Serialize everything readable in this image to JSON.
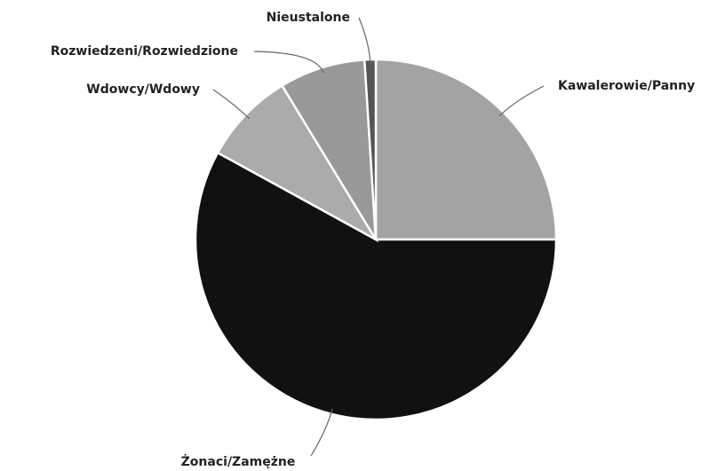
{
  "chart_data": {
    "type": "pie",
    "categories": [
      "Kawalerowie/Panny",
      "Żonaci/Zamężne",
      "Wdowcy/Wdowy",
      "Rozwiedzeni/Rozwiedzione",
      "Nieustalone"
    ],
    "values": [
      25,
      58,
      8.3,
      7.7,
      1
    ],
    "colors": [
      "#a3a3a3",
      "#111111",
      "#ababab",
      "#999999",
      "#555555"
    ]
  }
}
